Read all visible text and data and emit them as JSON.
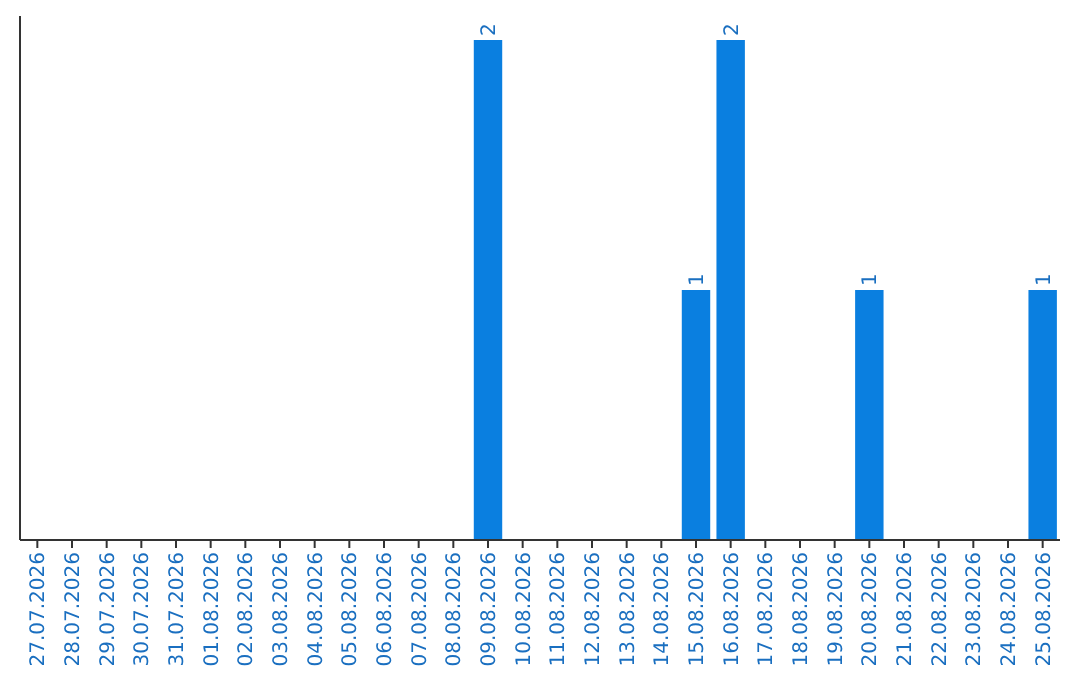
{
  "chart_data": {
    "type": "bar",
    "categories": [
      "27.07.2026",
      "28.07.2026",
      "29.07.2026",
      "30.07.2026",
      "31.07.2026",
      "01.08.2026",
      "02.08.2026",
      "03.08.2026",
      "04.08.2026",
      "05.08.2026",
      "06.08.2026",
      "07.08.2026",
      "08.08.2026",
      "09.08.2026",
      "10.08.2026",
      "11.08.2026",
      "12.08.2026",
      "13.08.2026",
      "14.08.2026",
      "15.08.2026",
      "16.08.2026",
      "17.08.2026",
      "18.08.2026",
      "19.08.2026",
      "20.08.2026",
      "21.08.2026",
      "22.08.2026",
      "23.08.2026",
      "24.08.2026",
      "25.08.2026"
    ],
    "values": [
      null,
      null,
      null,
      null,
      null,
      null,
      null,
      null,
      null,
      null,
      null,
      null,
      null,
      2,
      null,
      null,
      null,
      null,
      null,
      1,
      2,
      null,
      null,
      null,
      1,
      null,
      null,
      null,
      null,
      1
    ],
    "color": "#0a7fe0",
    "data_labels": true
  }
}
